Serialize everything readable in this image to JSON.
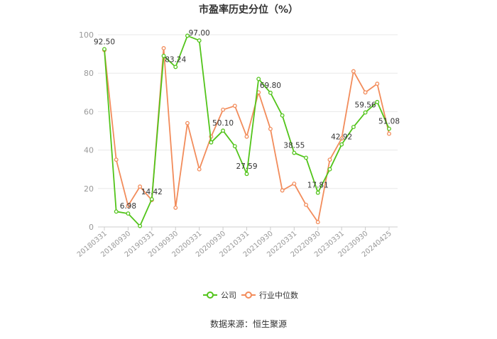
{
  "chart_data": {
    "type": "line",
    "title": "市盈率历史分位（%）",
    "source": "数据来源：恒生聚源",
    "ylim": [
      0,
      100
    ],
    "yticks": [
      0,
      20,
      40,
      60,
      80,
      100
    ],
    "grid": true,
    "legend_position": "bottom",
    "x_tick_labels": [
      "20180331",
      "20180930",
      "20190331",
      "20190930",
      "20200331",
      "20200930",
      "20210331",
      "20210930",
      "20220331",
      "20220930",
      "20230331",
      "20230930",
      "20240425"
    ],
    "series": [
      {
        "name": "公司",
        "color": "#52c41a",
        "values": [
          92.5,
          8,
          6.98,
          0.5,
          14.42,
          89,
          83.24,
          99.5,
          97.0,
          44,
          50.1,
          42,
          27.59,
          77,
          69.8,
          58,
          38.55,
          36,
          17.81,
          30,
          42.92,
          52,
          59.56,
          65,
          51.08
        ],
        "labels": {
          "0": "92.50",
          "2": "6.98",
          "4": "14.42",
          "6": "83.24",
          "8": "97.00",
          "10": "50.10",
          "12": "27.59",
          "14": "69.80",
          "16": "38.55",
          "18": "17.81",
          "20": "42.92",
          "22": "59.56",
          "24": "51.08"
        }
      },
      {
        "name": "行业中位数",
        "color": "#f28c5b",
        "values": [
          92,
          35,
          11,
          21,
          14,
          93,
          10,
          54,
          30,
          47,
          61,
          63,
          47,
          70,
          51,
          19,
          22.5,
          11.5,
          2.5,
          35,
          46,
          81,
          70,
          74.5,
          48.5
        ]
      }
    ]
  }
}
